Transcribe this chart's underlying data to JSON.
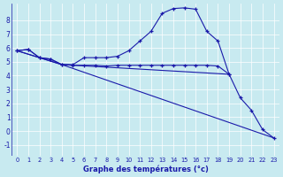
{
  "xlabel": "Graphe des températures (°c)",
  "xlim": [
    -0.5,
    23.5
  ],
  "ylim": [
    -1.8,
    9.2
  ],
  "yticks": [
    -1,
    0,
    1,
    2,
    3,
    4,
    5,
    6,
    7,
    8
  ],
  "xticks": [
    0,
    1,
    2,
    3,
    4,
    5,
    6,
    7,
    8,
    9,
    10,
    11,
    12,
    13,
    14,
    15,
    16,
    17,
    18,
    19,
    20,
    21,
    22,
    23
  ],
  "bg_color": "#c8eaf0",
  "grid_color": "#ffffff",
  "line_color": "#1a1aaa",
  "line1_x": [
    0,
    1,
    2,
    3,
    4,
    5,
    6,
    7,
    8,
    9,
    10,
    11,
    12,
    13,
    14,
    15,
    16,
    17,
    18,
    19,
    20,
    21,
    22,
    23
  ],
  "line1_y": [
    5.8,
    5.9,
    5.3,
    5.2,
    4.8,
    4.8,
    5.3,
    5.3,
    5.3,
    5.4,
    5.8,
    6.5,
    7.2,
    8.5,
    8.85,
    8.9,
    8.8,
    7.2,
    6.5,
    4.1,
    2.4,
    1.5,
    0.1,
    -0.5
  ],
  "line2_x": [
    0,
    1,
    2,
    3,
    4,
    5,
    6,
    7,
    8,
    9,
    10,
    11,
    12,
    13,
    14,
    15,
    16,
    17,
    18,
    19
  ],
  "line2_y": [
    5.8,
    5.9,
    5.3,
    5.2,
    4.8,
    4.75,
    4.75,
    4.75,
    4.7,
    4.75,
    4.75,
    4.75,
    4.75,
    4.75,
    4.75,
    4.75,
    4.75,
    4.75,
    4.7,
    4.1
  ],
  "line3_x": [
    0,
    4,
    23
  ],
  "line3_y": [
    5.8,
    4.8,
    -0.5
  ],
  "line4_x": [
    0,
    4,
    19
  ],
  "line4_y": [
    5.8,
    4.8,
    4.1
  ]
}
